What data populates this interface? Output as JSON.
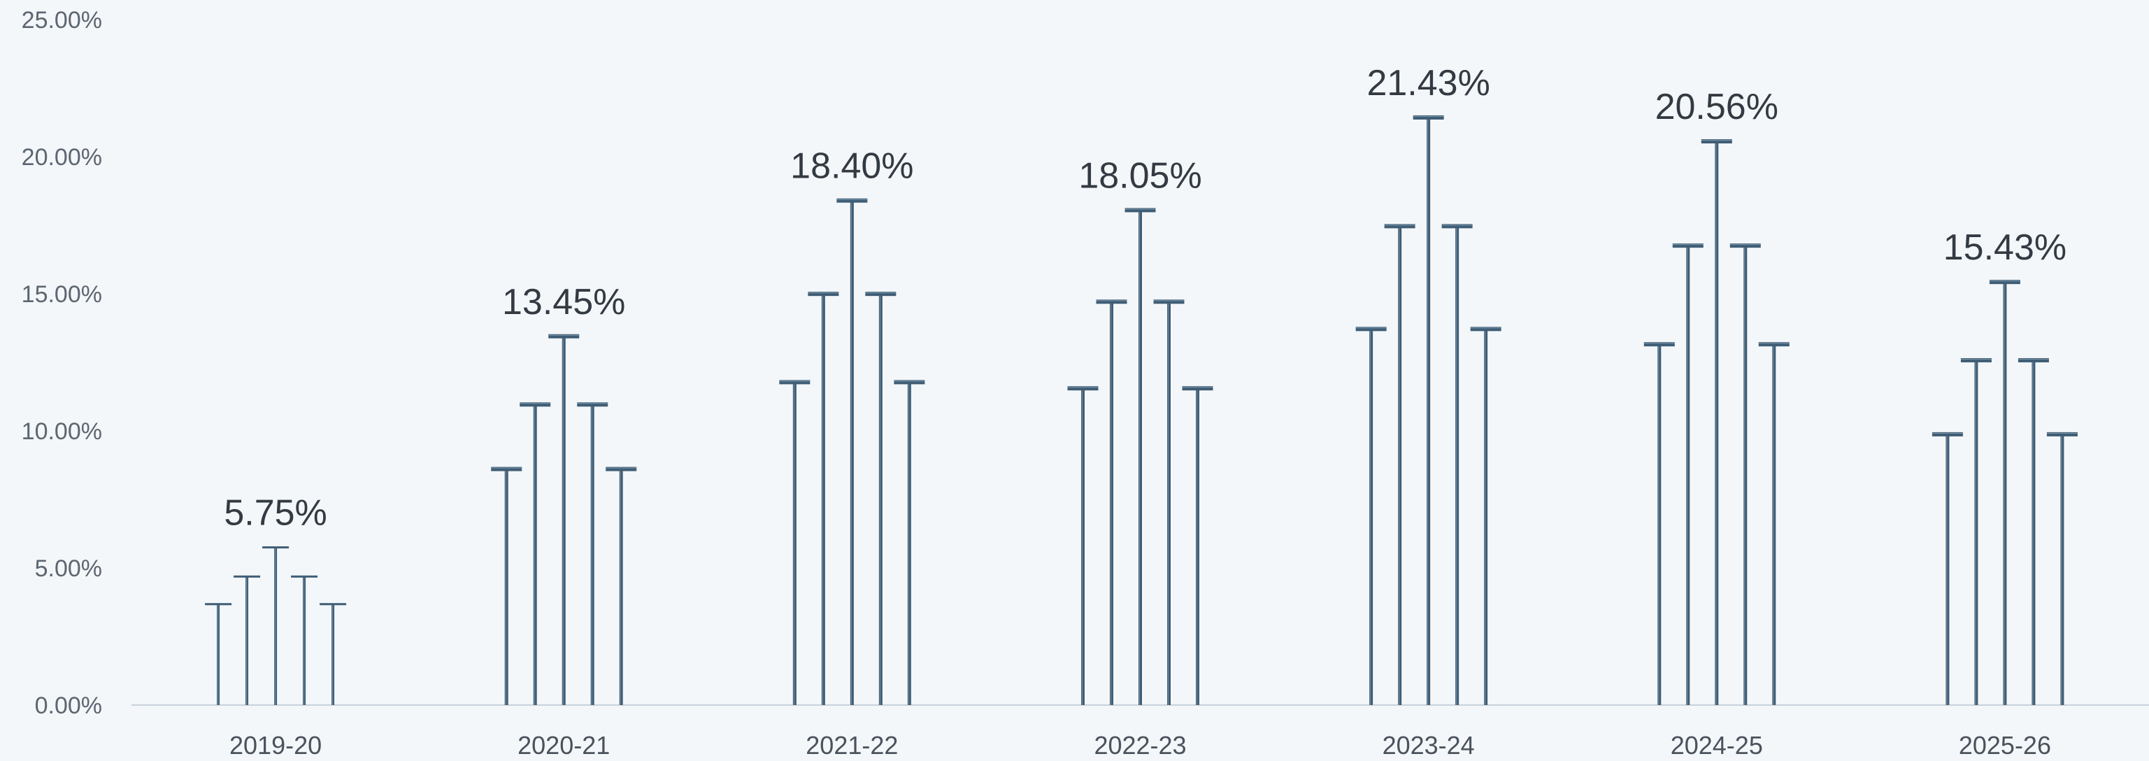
{
  "chart_data": {
    "type": "bar",
    "title": "",
    "xlabel": "",
    "ylabel": "",
    "ylim": [
      0,
      25
    ],
    "y_ticks": [
      "0.00%",
      "5.00%",
      "10.00%",
      "15.00%",
      "20.00%",
      "25.00%"
    ],
    "categories": [
      "2019-20",
      "2020-21",
      "2021-22",
      "2022-23",
      "2023-24",
      "2024-25",
      "2025-26"
    ],
    "values": [
      5.75,
      13.45,
      18.4,
      18.05,
      21.43,
      20.56,
      15.43
    ],
    "value_labels": [
      "5.75%",
      "13.45%",
      "18.40%",
      "18.05%",
      "21.43%",
      "20.56%",
      "15.43%"
    ],
    "stem_profile": [
      0.64,
      0.815,
      1.0,
      0.815,
      0.64
    ],
    "grid": false,
    "legend": "none",
    "colors": {
      "stem": "#3f5d75",
      "highlight": "#8fa8bb",
      "background": "#f3f7fa",
      "axis": "#c9d2da"
    }
  }
}
